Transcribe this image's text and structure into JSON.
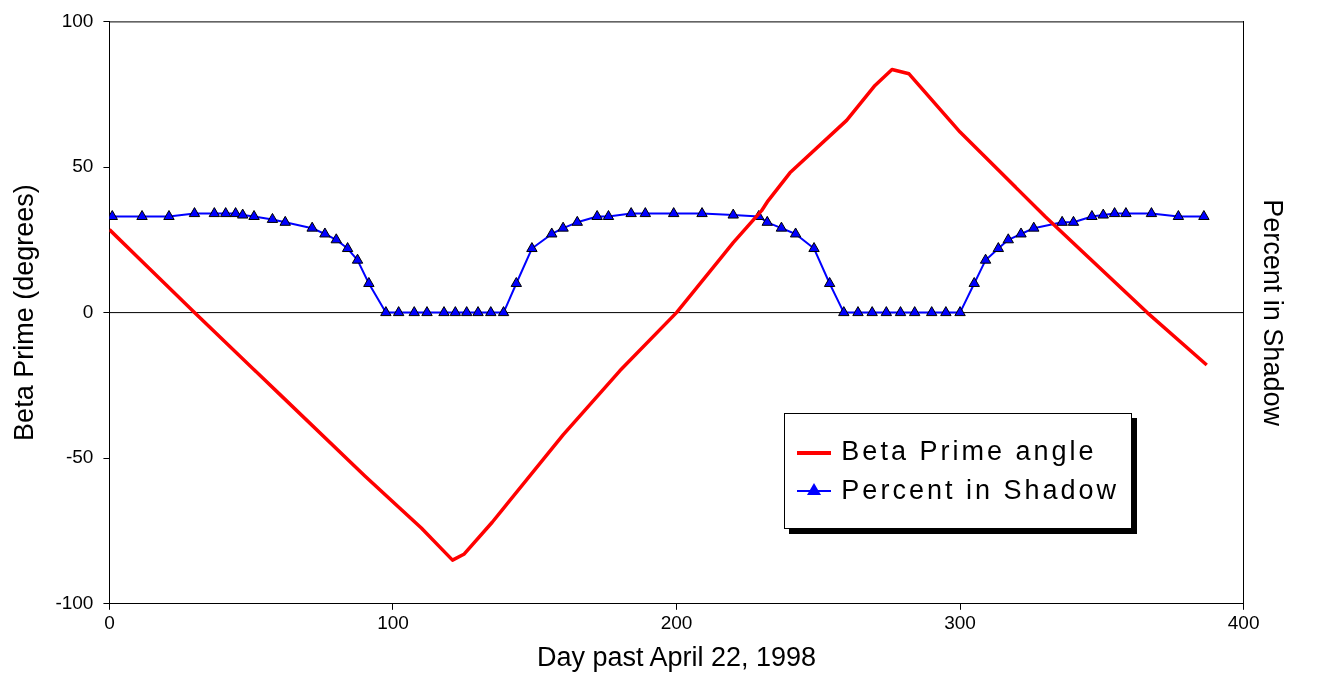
{
  "chart_data": {
    "type": "line",
    "xlabel": "Day past April 22, 1998",
    "ylabel": "Beta Prime (degrees)",
    "y2label": "Percent in Shadow",
    "xlim": [
      0,
      400
    ],
    "xticks": [
      0,
      100,
      200,
      300,
      400
    ],
    "ylim": [
      -100,
      100
    ],
    "yticks": [
      -100,
      -50,
      0,
      50,
      100
    ],
    "grid": false,
    "legend": "bottom right",
    "ref_lines": [
      {
        "axis": "y",
        "value": 0,
        "color": "#000000"
      }
    ],
    "series": [
      {
        "name": "Beta Prime angle",
        "color": "#ff0000",
        "marker": "none",
        "line_style": "solid",
        "x": [
          0,
          30,
          60,
          90,
          110,
          118,
          121,
          125,
          135,
          160,
          180,
          200,
          220,
          230,
          232,
          240,
          260,
          270,
          276,
          282,
          300,
          330,
          366,
          387
        ],
        "values": [
          28.5,
          0,
          -28,
          -56,
          -74,
          -82,
          -85,
          -83,
          -72,
          -42,
          -20,
          0,
          24,
          35,
          38,
          48,
          66,
          78,
          83.5,
          82,
          62,
          33,
          0,
          -18
        ]
      },
      {
        "name": "Percent in Shadow",
        "color": "#0000ff",
        "marker": "triangle",
        "line_style": "solid",
        "x": [
          1,
          11.5,
          21,
          30,
          37,
          41,
          44.5,
          47,
          51,
          57.5,
          62,
          71.5,
          76,
          80,
          84,
          87.5,
          91.5,
          97.5,
          102,
          107.5,
          112,
          118,
          122,
          126,
          130,
          134.5,
          139,
          143.5,
          149,
          156,
          160,
          165,
          172,
          176,
          184,
          189,
          199,
          209,
          220,
          229,
          232,
          237,
          242,
          248.5,
          254,
          259,
          264,
          269,
          274,
          279,
          284,
          290,
          295,
          300,
          305,
          309,
          313.5,
          317,
          321.5,
          326,
          336,
          340,
          346.5,
          350.5,
          354.5,
          358.5,
          367.5,
          377,
          386
        ],
        "values": [
          33,
          33,
          33,
          34,
          34,
          34,
          34,
          33.5,
          33,
          32,
          31,
          29,
          27,
          25,
          22,
          18,
          10,
          0,
          0,
          0,
          0,
          0,
          0,
          0,
          0,
          0,
          0,
          10,
          22,
          27,
          29,
          31,
          33,
          33,
          34,
          34,
          34,
          34,
          33.5,
          33,
          31,
          29,
          27,
          22,
          10,
          0,
          0,
          0,
          0,
          0,
          0,
          0,
          0,
          0,
          10,
          18,
          22,
          25,
          27,
          29,
          31,
          31,
          33,
          33.5,
          34,
          34,
          34,
          33,
          33
        ]
      }
    ]
  }
}
